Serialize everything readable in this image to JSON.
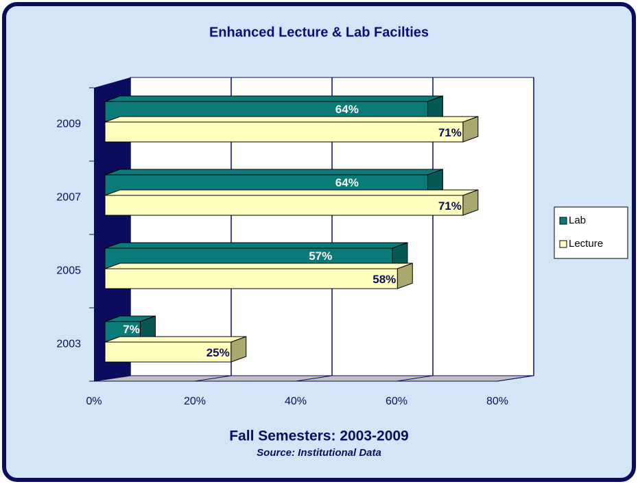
{
  "chart_data": {
    "type": "bar3d_horizontal",
    "title": "Enhanced Lecture & Lab Facilties",
    "x_label": "Fall Semesters: 2003-2009",
    "note": "Source: Institutional Data",
    "categories": [
      "2003",
      "2005",
      "2007",
      "2009"
    ],
    "series": [
      {
        "name": "Lab",
        "color": "#0b7b79",
        "values": [
          7,
          57,
          64,
          64
        ],
        "value_labels": [
          "7%",
          "57%",
          "64%",
          "64%"
        ]
      },
      {
        "name": "Lecture",
        "color": "#ffffc0",
        "values": [
          25,
          58,
          71,
          71
        ],
        "value_labels": [
          "25%",
          "58%",
          "71%",
          "71%"
        ]
      }
    ],
    "xlim": [
      0,
      80
    ],
    "xticks": [
      {
        "value": 0,
        "label": "0%"
      },
      {
        "value": 20,
        "label": "20%"
      },
      {
        "value": 40,
        "label": "40%"
      },
      {
        "value": 60,
        "label": "60%"
      },
      {
        "value": 80,
        "label": "80%"
      }
    ],
    "grid": true,
    "legend": "right"
  }
}
